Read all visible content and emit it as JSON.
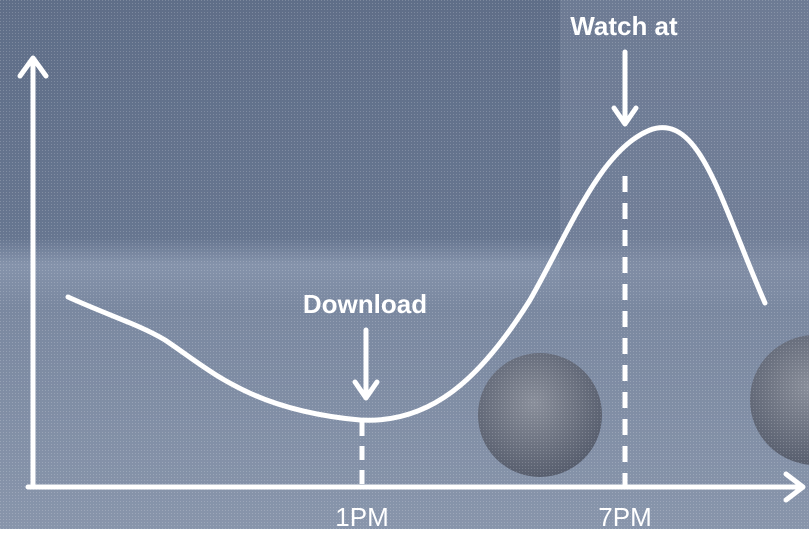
{
  "annotations": {
    "peak": "Watch at",
    "trough": "Download"
  },
  "x_labels": [
    "1PM",
    "7PM"
  ]
}
